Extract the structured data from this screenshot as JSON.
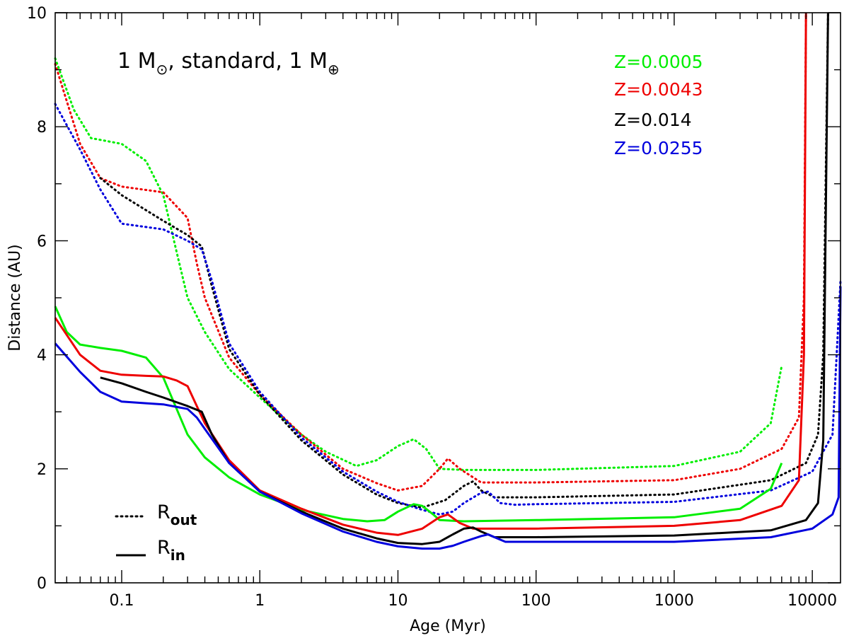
{
  "chart_data": {
    "type": "line",
    "title": "",
    "xlabel": "Age (Myr)",
    "ylabel": "Distance (AU)",
    "xscale": "log",
    "xlim": [
      0.033,
      16000
    ],
    "ylim": [
      0,
      10
    ],
    "grid": false,
    "x_ticks": [
      {
        "value": 0.1,
        "label": "0.1"
      },
      {
        "value": 1,
        "label": "1"
      },
      {
        "value": 10,
        "label": "10"
      },
      {
        "value": 100,
        "label": "100"
      },
      {
        "value": 1000,
        "label": "1000"
      },
      {
        "value": 10000,
        "label": "10000"
      }
    ],
    "y_ticks": [
      {
        "value": 0,
        "label": "0"
      },
      {
        "value": 2,
        "label": "2"
      },
      {
        "value": 4,
        "label": "4"
      },
      {
        "value": 6,
        "label": "6"
      },
      {
        "value": 8,
        "label": "8"
      },
      {
        "value": 10,
        "label": "10"
      }
    ],
    "annotation": {
      "main": "1 M",
      "sun_sub": "⊙",
      "middle": ", standard, 1 M",
      "earth_sub": "⊕"
    },
    "metallicity_legend": [
      {
        "label": "Z=0.0005",
        "color": "#00ee00"
      },
      {
        "label": "Z=0.0043",
        "color": "#ee0000"
      },
      {
        "label": "Z=0.014",
        "color": "#000000"
      },
      {
        "label": "Z=0.0255",
        "color": "#0000dd"
      }
    ],
    "line_key": {
      "outer": {
        "main": "R",
        "sub": "out",
        "style": "dotted"
      },
      "inner": {
        "main": "R",
        "sub": "in",
        "style": "solid"
      }
    },
    "series": [
      {
        "metallicity": "Z=0.0005",
        "kind": "R_out",
        "color": "#00ee00",
        "x": [
          0.033,
          0.045,
          0.06,
          0.1,
          0.15,
          0.2,
          0.25,
          0.3,
          0.4,
          0.6,
          1,
          2,
          3,
          5,
          7,
          10,
          13,
          16,
          20,
          30,
          100,
          1000,
          3000,
          5000,
          6000
        ],
        "y": [
          9.2,
          8.3,
          7.8,
          7.7,
          7.4,
          6.8,
          5.8,
          5.0,
          4.4,
          3.75,
          3.25,
          2.6,
          2.3,
          2.05,
          2.15,
          2.4,
          2.52,
          2.35,
          2.0,
          1.98,
          1.98,
          2.05,
          2.3,
          2.8,
          3.8
        ]
      },
      {
        "metallicity": "Z=0.0043",
        "kind": "R_out",
        "color": "#ee0000",
        "x": [
          0.033,
          0.05,
          0.07,
          0.1,
          0.2,
          0.3,
          0.35,
          0.4,
          0.6,
          1,
          2,
          4,
          7,
          10,
          15,
          20,
          23,
          28,
          40,
          100,
          1000,
          3000,
          6000,
          8000,
          8700,
          9000
        ],
        "y": [
          9.1,
          7.7,
          7.1,
          6.95,
          6.85,
          6.4,
          5.6,
          5.0,
          3.95,
          3.3,
          2.6,
          2.0,
          1.75,
          1.62,
          1.7,
          2.0,
          2.18,
          2.0,
          1.76,
          1.76,
          1.8,
          2.0,
          2.35,
          2.9,
          5.0,
          10.0
        ]
      },
      {
        "metallicity": "Z=0.014",
        "kind": "R_out",
        "color": "#000000",
        "x": [
          0.07,
          0.1,
          0.2,
          0.3,
          0.38,
          0.45,
          0.6,
          1,
          2,
          4,
          7,
          10,
          15,
          22,
          30,
          35,
          40,
          50,
          100,
          1000,
          5000,
          9000,
          11000,
          12000,
          13000
        ],
        "y": [
          7.1,
          6.8,
          6.35,
          6.1,
          5.9,
          5.2,
          4.1,
          3.3,
          2.5,
          1.9,
          1.55,
          1.4,
          1.32,
          1.45,
          1.7,
          1.78,
          1.62,
          1.5,
          1.5,
          1.55,
          1.8,
          2.1,
          2.6,
          4.0,
          10.0
        ]
      },
      {
        "metallicity": "Z=0.0255",
        "kind": "R_out",
        "color": "#0000dd",
        "x": [
          0.033,
          0.05,
          0.07,
          0.1,
          0.2,
          0.3,
          0.38,
          0.45,
          0.6,
          1,
          2,
          4,
          7,
          10,
          15,
          20,
          25,
          30,
          40,
          45,
          55,
          70,
          100,
          1000,
          5000,
          10000,
          14000,
          16000
        ],
        "y": [
          8.4,
          7.6,
          6.9,
          6.3,
          6.2,
          6.0,
          5.85,
          5.3,
          4.2,
          3.35,
          2.55,
          1.95,
          1.6,
          1.42,
          1.28,
          1.2,
          1.25,
          1.4,
          1.58,
          1.6,
          1.4,
          1.37,
          1.38,
          1.42,
          1.62,
          1.95,
          2.6,
          5.3
        ]
      },
      {
        "metallicity": "Z=0.0005",
        "kind": "R_in",
        "color": "#00ee00",
        "x": [
          0.033,
          0.04,
          0.05,
          0.07,
          0.1,
          0.15,
          0.2,
          0.25,
          0.3,
          0.4,
          0.6,
          1,
          2,
          4,
          6,
          8,
          10,
          13,
          15,
          18,
          20,
          30,
          100,
          1000,
          3000,
          5000,
          6000
        ],
        "y": [
          4.85,
          4.4,
          4.18,
          4.12,
          4.07,
          3.95,
          3.6,
          3.05,
          2.6,
          2.2,
          1.85,
          1.55,
          1.28,
          1.12,
          1.08,
          1.1,
          1.25,
          1.38,
          1.35,
          1.2,
          1.1,
          1.08,
          1.1,
          1.15,
          1.3,
          1.65,
          2.1
        ]
      },
      {
        "metallicity": "Z=0.0043",
        "kind": "R_in",
        "color": "#ee0000",
        "x": [
          0.033,
          0.05,
          0.07,
          0.1,
          0.15,
          0.2,
          0.25,
          0.3,
          0.35,
          0.4,
          0.6,
          1,
          2,
          4,
          7,
          10,
          15,
          20,
          23,
          28,
          35,
          100,
          1000,
          3000,
          6000,
          8000,
          8700,
          9000
        ],
        "y": [
          4.65,
          4.0,
          3.72,
          3.65,
          3.63,
          3.62,
          3.55,
          3.45,
          3.1,
          2.8,
          2.15,
          1.62,
          1.3,
          1.02,
          0.88,
          0.84,
          0.95,
          1.15,
          1.2,
          1.05,
          0.95,
          0.95,
          1.0,
          1.1,
          1.35,
          1.8,
          4.0,
          10.0
        ]
      },
      {
        "metallicity": "Z=0.014",
        "kind": "R_in",
        "color": "#000000",
        "x": [
          0.07,
          0.1,
          0.15,
          0.2,
          0.3,
          0.38,
          0.45,
          0.6,
          1,
          2,
          4,
          7,
          10,
          15,
          20,
          25,
          30,
          35,
          40,
          50,
          100,
          1000,
          5000,
          9000,
          11000,
          12000,
          13000
        ],
        "y": [
          3.6,
          3.5,
          3.35,
          3.25,
          3.1,
          3.0,
          2.6,
          2.1,
          1.6,
          1.25,
          0.95,
          0.78,
          0.7,
          0.68,
          0.72,
          0.85,
          0.95,
          0.97,
          0.9,
          0.8,
          0.8,
          0.83,
          0.92,
          1.1,
          1.4,
          2.5,
          10.0
        ]
      },
      {
        "metallicity": "Z=0.0255",
        "kind": "R_in",
        "color": "#0000dd",
        "x": [
          0.033,
          0.05,
          0.07,
          0.1,
          0.15,
          0.2,
          0.3,
          0.35,
          0.4,
          0.6,
          1,
          2,
          4,
          7,
          10,
          15,
          20,
          25,
          30,
          40,
          45,
          50,
          60,
          100,
          1000,
          5000,
          10000,
          14000,
          15500,
          16000
        ],
        "y": [
          4.2,
          3.7,
          3.35,
          3.18,
          3.15,
          3.13,
          3.05,
          2.9,
          2.7,
          2.1,
          1.6,
          1.22,
          0.9,
          0.72,
          0.64,
          0.6,
          0.6,
          0.65,
          0.72,
          0.82,
          0.85,
          0.8,
          0.72,
          0.72,
          0.72,
          0.8,
          0.95,
          1.2,
          1.5,
          5.2
        ]
      }
    ]
  }
}
